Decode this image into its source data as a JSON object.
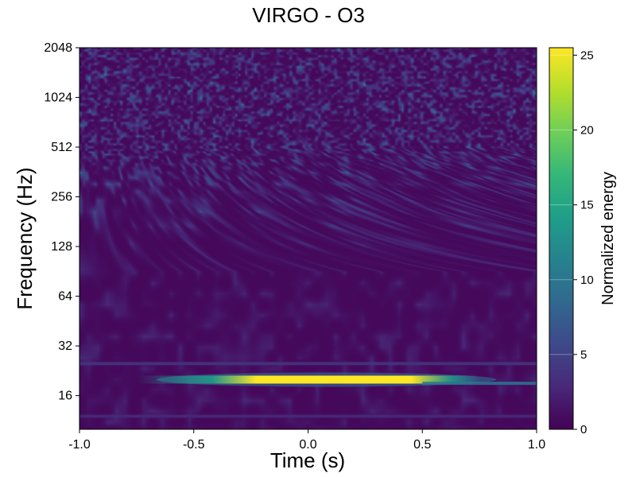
{
  "chart_data": {
    "type": "heatmap",
    "title": "VIRGO - O3",
    "xlabel": "Time (s)",
    "ylabel": "Frequency (Hz)",
    "xlim": [
      -1.0,
      1.0
    ],
    "ylim": [
      10,
      2048
    ],
    "yscale": "log2",
    "x_ticks": [
      -1.0,
      -0.5,
      0.0,
      0.5,
      1.0
    ],
    "x_tick_labels": [
      "-1.0",
      "-0.5",
      "0.0",
      "0.5",
      "1.0"
    ],
    "y_ticks": [
      16,
      32,
      64,
      128,
      256,
      512,
      1024,
      2048
    ],
    "y_tick_labels": [
      "16",
      "32",
      "64",
      "128",
      "256",
      "512",
      "1024",
      "2048"
    ],
    "colorbar": {
      "label": "Normalized energy",
      "colormap": "viridis",
      "range": [
        0,
        25.5
      ],
      "ticks": [
        0,
        5,
        10,
        15,
        20,
        25
      ],
      "tick_labels": [
        "0",
        "5",
        "10",
        "15",
        "20",
        "25"
      ]
    },
    "features": [
      {
        "kind": "band",
        "freq_hz": 20,
        "t_start": -0.5,
        "t_end": 0.5,
        "peak_t": 0.15,
        "peak_energy": 25.5
      },
      {
        "kind": "line",
        "freq_hz": 25,
        "t_start": -1.0,
        "t_end": 1.0,
        "energy": 4
      },
      {
        "kind": "line",
        "freq_hz": 19,
        "t_start": 0.5,
        "t_end": 1.0,
        "energy": 10
      },
      {
        "kind": "line",
        "freq_hz": 12,
        "t_start": -1.0,
        "t_end": 1.0,
        "energy": 3
      }
    ],
    "background": "mostly dark purple noise, energy roughly 0-3, with sparse speckles up to about 10 above 128 Hz",
    "grid": false
  },
  "colors": {
    "viridis_stops": [
      "#440154",
      "#482878",
      "#3e4989",
      "#31688e",
      "#26828e",
      "#1f9e89",
      "#35b779",
      "#6ece58",
      "#b5de2b",
      "#fde725"
    ]
  }
}
